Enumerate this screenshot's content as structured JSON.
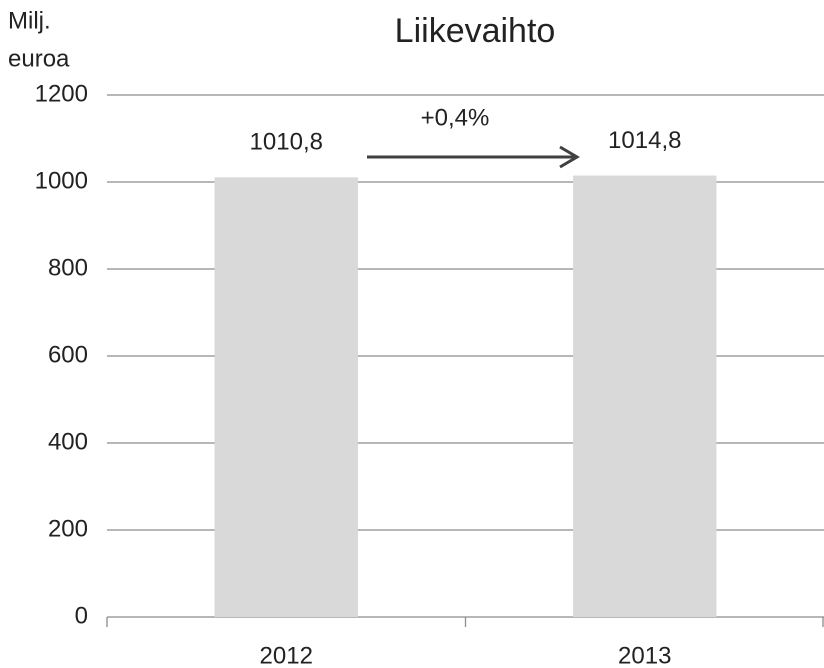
{
  "chart_data": {
    "type": "bar",
    "title": "Liikevaihto",
    "y_label": [
      "Milj.",
      "euroa"
    ],
    "categories": [
      "2012",
      "2013"
    ],
    "values": [
      1010.8,
      1014.8
    ],
    "value_labels": [
      "1010,8",
      "1014,8"
    ],
    "color": "#d9d9d9",
    "ylim": [
      0,
      1200
    ],
    "yticks": [
      0,
      200,
      400,
      600,
      800,
      1000,
      1200
    ],
    "grid": true,
    "annotation": "+0,4%"
  }
}
